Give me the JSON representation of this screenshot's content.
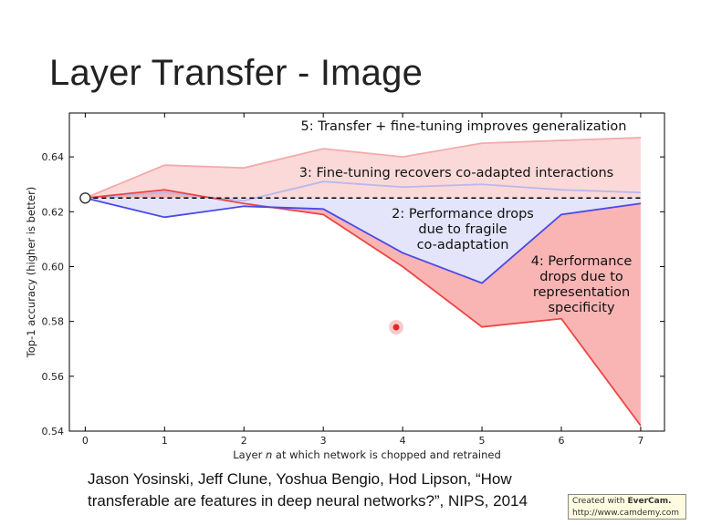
{
  "slide": {
    "title": "Layer Transfer - Image",
    "citation_line1": "Jason Yosinski, Jeff Clune, Yoshua Bengio, Hod Lipson, “How",
    "citation_line2": "transferable are features in deep neural networks?”, NIPS, 2014",
    "watermark_prefix": "Created with",
    "watermark_brand": "EverCam.",
    "watermark_url": "http://www.camdemy.com"
  },
  "chart_data": {
    "type": "line",
    "title": "",
    "xlabel_pre": "Layer ",
    "xlabel_var": "n",
    "xlabel_post": " at which network is chopped and retrained",
    "ylabel": "Top-1 accuracy (higher is better)",
    "xlim": [
      -0.2,
      7.3
    ],
    "ylim": [
      0.54,
      0.656
    ],
    "x_ticks": [
      0,
      1,
      2,
      3,
      4,
      5,
      6,
      7
    ],
    "y_ticks": [
      0.54,
      0.56,
      0.58,
      0.6,
      0.62,
      0.64
    ],
    "y_tick_labels": [
      "0.54",
      "0.56",
      "0.58",
      "0.60",
      "0.62",
      "0.64"
    ],
    "baseline": 0.625,
    "baseline_point": {
      "x": 0,
      "y": 0.625
    },
    "series": [
      {
        "key": "selffer_ft",
        "x": [
          0,
          1,
          2,
          3,
          4,
          5,
          6,
          7
        ],
        "values": [
          0.625,
          0.627,
          0.624,
          0.631,
          0.629,
          0.63,
          0.628,
          0.627
        ],
        "color": "#b8b8ee"
      },
      {
        "key": "selffer",
        "x": [
          0,
          1,
          2,
          3,
          4,
          5,
          6,
          7
        ],
        "values": [
          0.625,
          0.618,
          0.622,
          0.621,
          0.605,
          0.594,
          0.619,
          0.623
        ],
        "color": "#4a4ae6"
      },
      {
        "key": "transfer_ft",
        "x": [
          0,
          1,
          2,
          3,
          4,
          5,
          6,
          7
        ],
        "values": [
          0.625,
          0.637,
          0.636,
          0.643,
          0.64,
          0.645,
          0.646,
          0.647
        ],
        "color": "#f4aaaa"
      },
      {
        "key": "transfer",
        "x": [
          0,
          1,
          2,
          3,
          4,
          5,
          6,
          7
        ],
        "values": [
          0.625,
          0.628,
          0.623,
          0.619,
          0.6,
          0.578,
          0.581,
          0.542
        ],
        "color": "#ee4444"
      }
    ],
    "annotations": [
      {
        "id": "ann5",
        "lines": [
          "5: Transfer + fine-tuning improves generalization"
        ]
      },
      {
        "id": "ann3",
        "lines": [
          "3: Fine-tuning recovers co-adapted interactions"
        ]
      },
      {
        "id": "ann2",
        "lines": [
          "2: Performance drops",
          "due to fragile",
          "co-adaptation"
        ]
      },
      {
        "id": "ann4",
        "lines": [
          "4: Performance",
          "drops due to",
          "representation",
          "specificity"
        ]
      }
    ],
    "colors": {
      "transfer_ft_fill": "#fbd9d9",
      "transfer_fill": "#f9b4b4",
      "selffer_fill": "#e4e4fa"
    }
  }
}
